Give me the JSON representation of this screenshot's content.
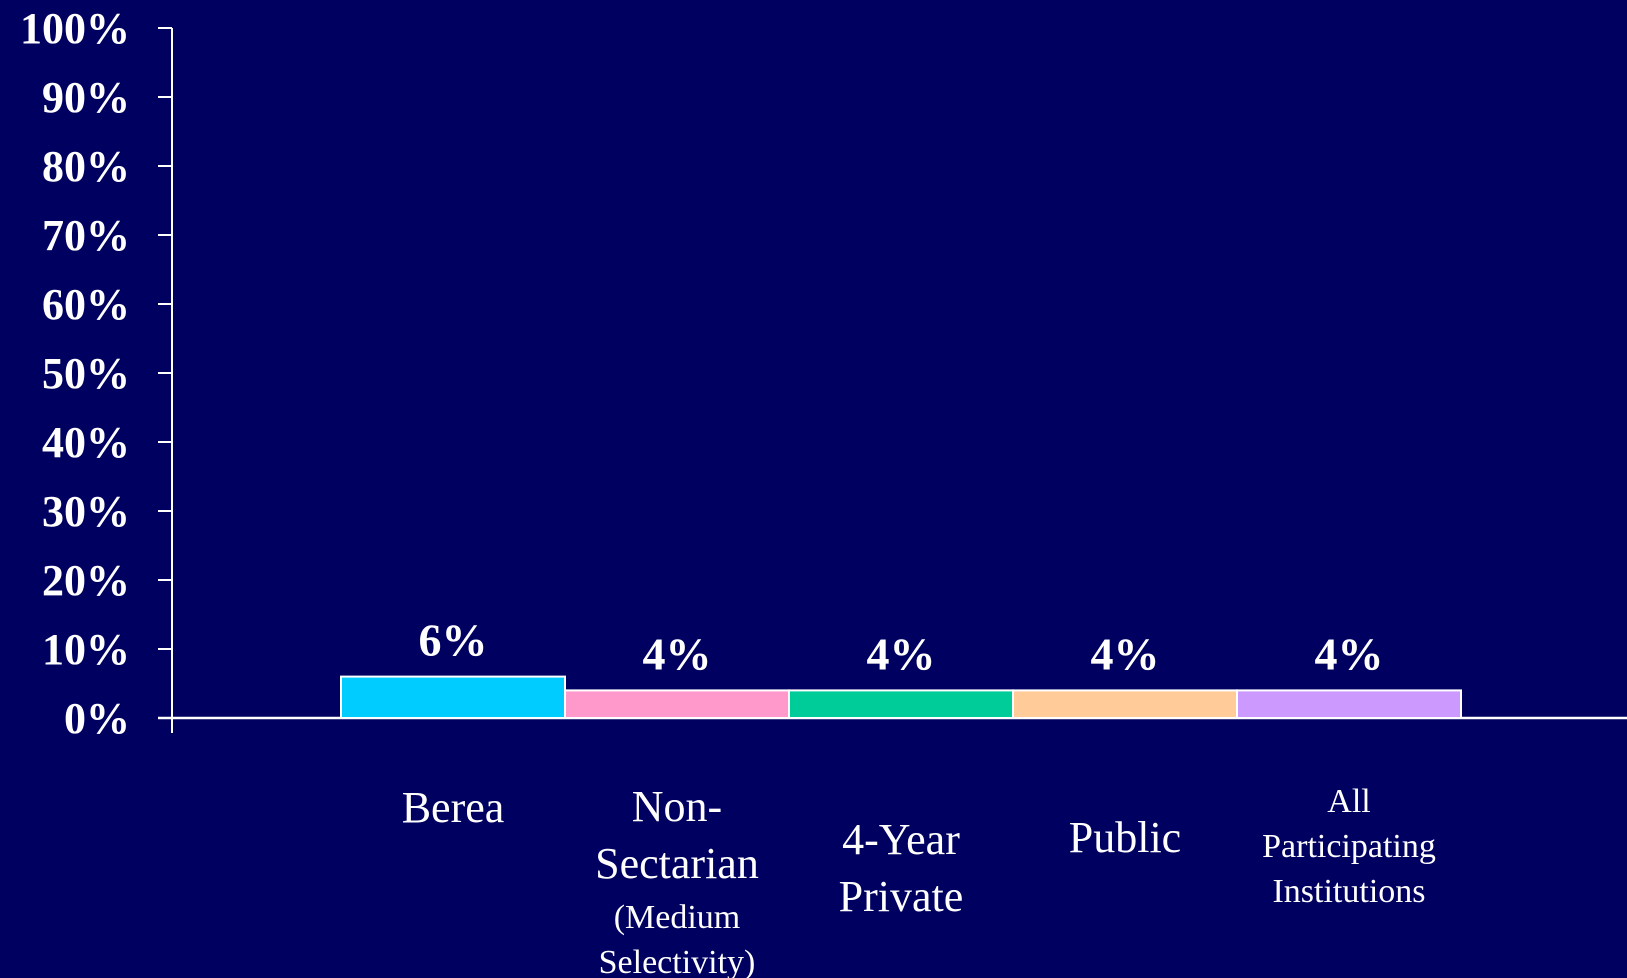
{
  "chart_data": {
    "type": "bar",
    "ylim": [
      0,
      100
    ],
    "y_ticks": [
      "0%",
      "10%",
      "20%",
      "30%",
      "40%",
      "50%",
      "60%",
      "70%",
      "80%",
      "90%",
      "100%"
    ],
    "categories": [
      {
        "lines": [
          "Berea"
        ]
      },
      {
        "lines": [
          "Non-",
          "Sectarian",
          "(Medium",
          "Selectivity)"
        ]
      },
      {
        "lines": [
          "4-Year",
          "Private"
        ]
      },
      {
        "lines": [
          "Public"
        ]
      },
      {
        "lines": [
          "All",
          "Participating",
          "Institutions"
        ]
      }
    ],
    "values": [
      6,
      4,
      4,
      4,
      4
    ],
    "data_labels": [
      "6%",
      "4%",
      "4%",
      "4%",
      "4%"
    ],
    "colors": [
      "#00CCFF",
      "#FF99CC",
      "#00CC99",
      "#FFCC99",
      "#CC99FF"
    ],
    "grid": false,
    "legend": "none"
  }
}
